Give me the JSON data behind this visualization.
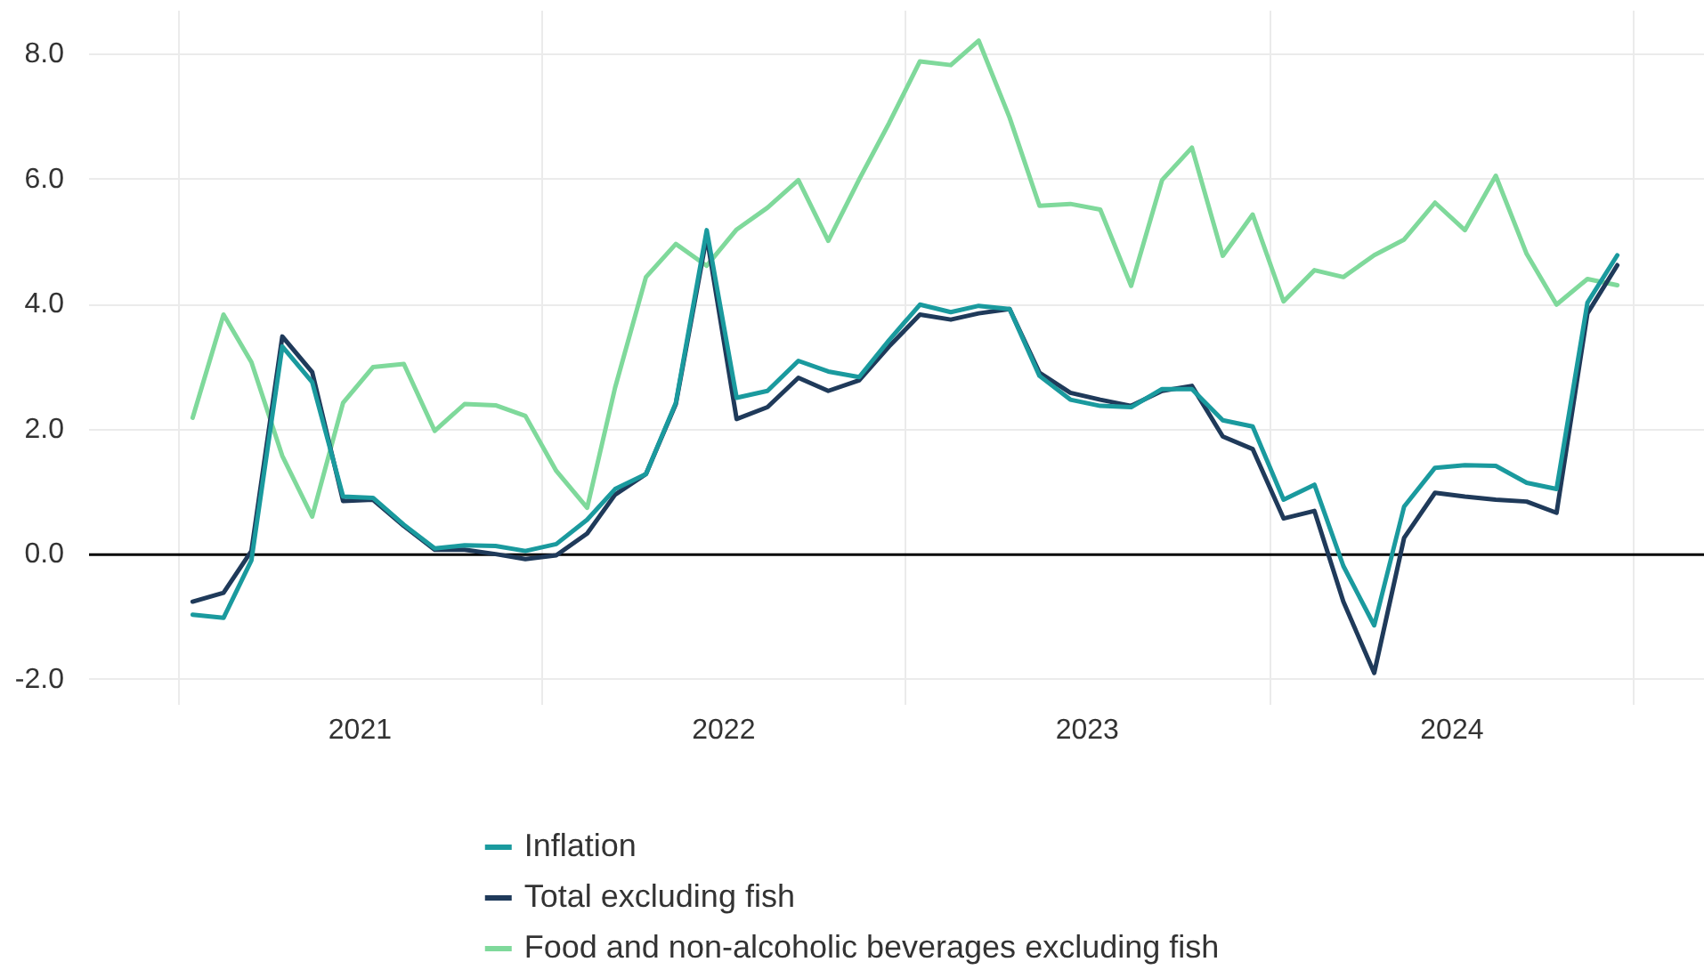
{
  "chart_data": {
    "type": "line",
    "x": [
      "2021-01-15",
      "2021-02-15",
      "2021-03-15",
      "2021-04-15",
      "2021-05-15",
      "2021-06-15",
      "2021-07-15",
      "2021-08-15",
      "2021-09-15",
      "2021-10-15",
      "2021-11-15",
      "2021-12-15",
      "2022-01-15",
      "2022-02-15",
      "2022-03-15",
      "2022-04-15",
      "2022-05-15",
      "2022-06-15",
      "2022-07-15",
      "2022-08-15",
      "2022-09-15",
      "2022-10-15",
      "2022-11-15",
      "2022-12-15",
      "2023-01-15",
      "2023-02-15",
      "2023-03-15",
      "2023-04-15",
      "2023-05-15",
      "2023-06-15",
      "2023-07-15",
      "2023-08-15",
      "2023-09-15",
      "2023-10-15",
      "2023-11-15",
      "2023-12-15",
      "2024-01-15",
      "2024-02-15",
      "2024-03-15",
      "2024-04-15",
      "2024-05-15",
      "2024-06-15",
      "2024-07-15",
      "2024-08-15",
      "2024-09-15",
      "2024-10-15",
      "2024-11-15",
      "2024-12-15"
    ],
    "series": [
      {
        "name": "Inflation",
        "color": "#1a9a9e",
        "values": [
          -0.96,
          -1.01,
          -0.09,
          3.33,
          2.76,
          0.93,
          0.91,
          0.48,
          0.1,
          0.15,
          0.14,
          0.06,
          0.17,
          0.56,
          1.05,
          1.29,
          2.43,
          5.19,
          2.51,
          2.62,
          3.1,
          2.93,
          2.84,
          3.43,
          4.0,
          3.88,
          3.98,
          3.93,
          2.86,
          2.48,
          2.38,
          2.36,
          2.65,
          2.65,
          2.15,
          2.05,
          0.88,
          1.12,
          -0.18,
          -1.13,
          0.77,
          1.39,
          1.43,
          1.42,
          1.15,
          1.05,
          4.03,
          4.79
        ]
      },
      {
        "name": "Total excluding fish",
        "color": "#1f3a5a",
        "values": [
          -0.75,
          -0.61,
          0.06,
          3.49,
          2.92,
          0.86,
          0.88,
          0.46,
          0.08,
          0.08,
          0.01,
          -0.07,
          -0.01,
          0.34,
          0.96,
          1.29,
          2.41,
          5.09,
          2.17,
          2.36,
          2.83,
          2.62,
          2.79,
          3.33,
          3.84,
          3.76,
          3.86,
          3.93,
          2.91,
          2.59,
          2.48,
          2.38,
          2.62,
          2.7,
          1.89,
          1.69,
          0.58,
          0.7,
          -0.75,
          -1.89,
          0.27,
          0.99,
          0.93,
          0.88,
          0.85,
          0.67,
          3.86,
          4.63
        ]
      },
      {
        "name": "Food and non-alcoholic beverages excluding fish",
        "color": "#7fd99b",
        "values": [
          2.19,
          3.84,
          3.08,
          1.58,
          0.61,
          2.43,
          3.0,
          3.05,
          1.98,
          2.41,
          2.39,
          2.22,
          1.34,
          0.75,
          2.67,
          4.44,
          4.97,
          4.62,
          5.2,
          5.55,
          5.99,
          5.02,
          6.0,
          6.9,
          7.89,
          7.83,
          8.22,
          6.99,
          5.58,
          5.61,
          5.52,
          4.3,
          5.99,
          6.51,
          4.78,
          5.44,
          4.05,
          4.55,
          4.44,
          4.79,
          5.04,
          5.63,
          5.19,
          6.06,
          4.81,
          4.0,
          4.41,
          4.31
        ]
      }
    ],
    "xlim": [
      "2020-10-03",
      "2025-03-12"
    ],
    "xticks": [
      {
        "value": "2021-01-01",
        "label": null
      },
      {
        "value": "2021-07-02",
        "label": "2021"
      },
      {
        "value": "2022-01-01",
        "label": null
      },
      {
        "value": "2022-07-02",
        "label": "2022"
      },
      {
        "value": "2023-01-01",
        "label": null
      },
      {
        "value": "2023-07-02",
        "label": "2023"
      },
      {
        "value": "2024-01-01",
        "label": null
      },
      {
        "value": "2024-07-02",
        "label": "2024"
      },
      {
        "value": "2025-01-01",
        "label": null
      }
    ],
    "ylim": [
      -2.4,
      8.7
    ],
    "yticks": [
      {
        "value": -2,
        "label": "-2.0"
      },
      {
        "value": 0,
        "label": "0.0"
      },
      {
        "value": 2,
        "label": "2.0"
      },
      {
        "value": 4,
        "label": "4.0"
      },
      {
        "value": 6,
        "label": "6.0"
      },
      {
        "value": 8,
        "label": "8.0"
      }
    ],
    "ref_lines": [
      {
        "axis": "y",
        "value": 0,
        "color": "#000000"
      }
    ],
    "grid": true,
    "legend": "bottom"
  }
}
